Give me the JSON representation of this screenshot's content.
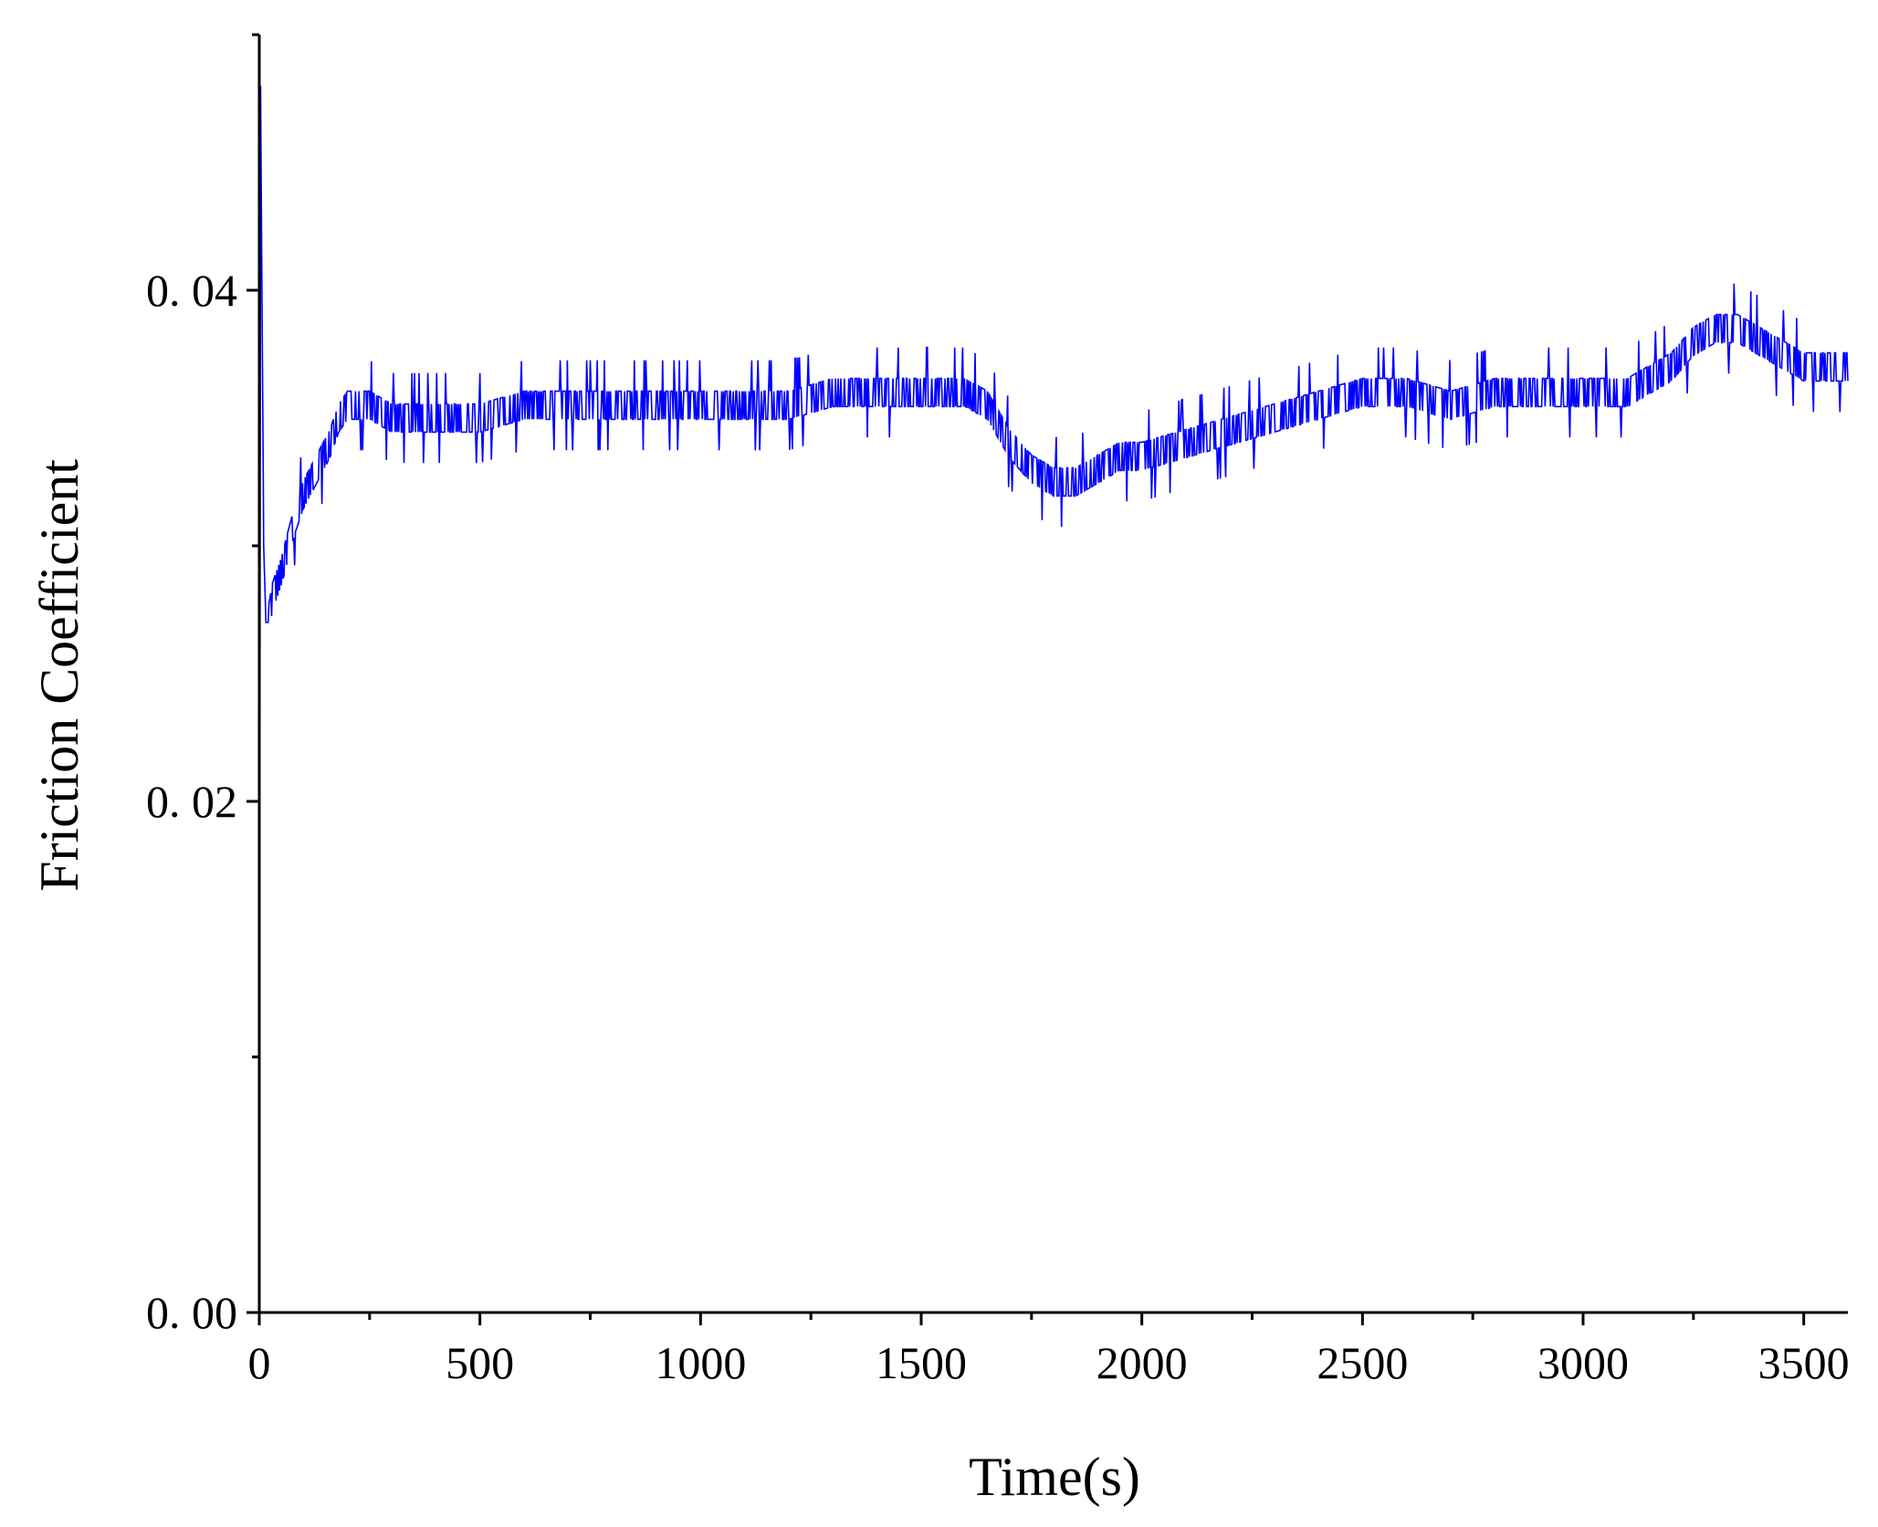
{
  "chart_data": {
    "type": "line",
    "title": "",
    "xlabel": "Time(s)",
    "ylabel": "Friction Coefficient",
    "xlim": [
      0,
      3600
    ],
    "ylim": [
      0,
      0.05
    ],
    "x_ticks": [
      {
        "value": 0,
        "label": "0"
      },
      {
        "value": 500,
        "label": "500"
      },
      {
        "value": 1000,
        "label": "1000"
      },
      {
        "value": 1500,
        "label": "1500"
      },
      {
        "value": 2000,
        "label": "2000"
      },
      {
        "value": 2500,
        "label": "2500"
      },
      {
        "value": 3000,
        "label": "3000"
      },
      {
        "value": 3500,
        "label": "3500"
      }
    ],
    "x_minor_ticks": [
      250,
      750,
      1250,
      1750,
      2250,
      2750,
      3250
    ],
    "y_ticks": [
      {
        "value": 0.0,
        "label": "0. 00"
      },
      {
        "value": 0.02,
        "label": "0. 02"
      },
      {
        "value": 0.04,
        "label": "0. 04"
      }
    ],
    "y_minor_ticks": [
      0.01,
      0.03,
      0.05
    ],
    "grid": false,
    "legend": "none",
    "colors": {
      "series": "#0000ff",
      "axes": "#000000"
    },
    "series": [
      {
        "noise_amplitude": 0.0011,
        "x": [
          0,
          3,
          6,
          10,
          15,
          20,
          30,
          50,
          80,
          100,
          130,
          160,
          180,
          200,
          250,
          300,
          400,
          500,
          600,
          700,
          800,
          900,
          1000,
          1100,
          1200,
          1300,
          1400,
          1500,
          1600,
          1650,
          1700,
          1750,
          1800,
          1850,
          1900,
          1950,
          2000,
          2100,
          2200,
          2300,
          2400,
          2500,
          2600,
          2700,
          2800,
          2900,
          3000,
          3100,
          3200,
          3250,
          3300,
          3350,
          3400,
          3450,
          3500,
          3550,
          3600
        ],
        "y": [
          0.0,
          0.048,
          0.04,
          0.03,
          0.027,
          0.027,
          0.028,
          0.029,
          0.031,
          0.032,
          0.033,
          0.034,
          0.035,
          0.0355,
          0.0355,
          0.035,
          0.035,
          0.035,
          0.0355,
          0.0355,
          0.0355,
          0.0355,
          0.0355,
          0.0355,
          0.0355,
          0.036,
          0.036,
          0.036,
          0.036,
          0.0355,
          0.034,
          0.033,
          0.0325,
          0.0325,
          0.033,
          0.0335,
          0.0335,
          0.034,
          0.0345,
          0.035,
          0.0355,
          0.036,
          0.036,
          0.0355,
          0.036,
          0.036,
          0.036,
          0.036,
          0.037,
          0.038,
          0.0385,
          0.0385,
          0.038,
          0.0375,
          0.037,
          0.037,
          0.037
        ]
      }
    ]
  }
}
